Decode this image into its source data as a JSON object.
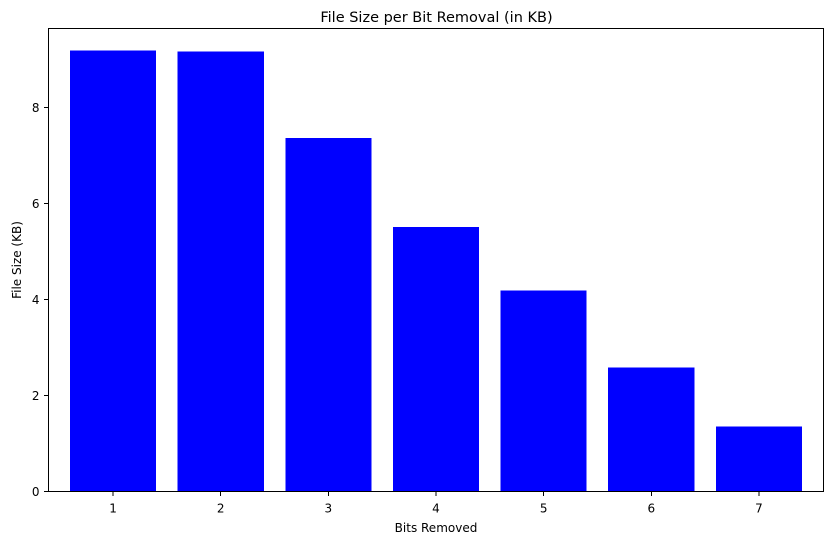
{
  "chart_data": {
    "type": "bar",
    "title": "File Size per Bit Removal (in KB)",
    "xlabel": "Bits Removed",
    "ylabel": "File Size (KB)",
    "categories": [
      "1",
      "2",
      "3",
      "4",
      "5",
      "6",
      "7"
    ],
    "values": [
      9.19,
      9.17,
      7.37,
      5.51,
      4.19,
      2.58,
      1.35
    ],
    "ylim": [
      0,
      9.65
    ],
    "yticks": [
      0,
      2,
      4,
      6,
      8
    ],
    "bar_color": "#0000ff",
    "grid": false,
    "legend": "none"
  }
}
